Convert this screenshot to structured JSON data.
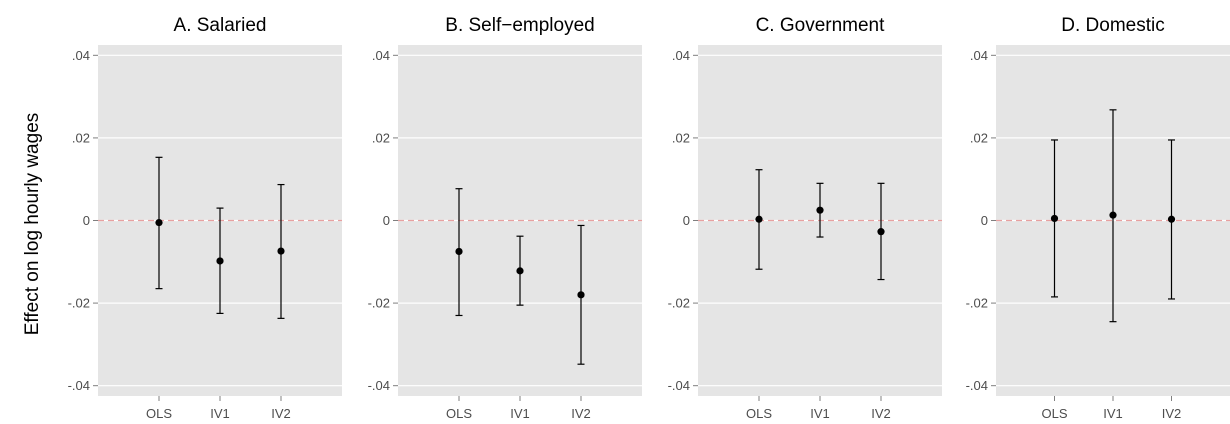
{
  "figure": {
    "ylabel": "Effect on log hourly wages"
  },
  "chart_data": [
    {
      "type": "scatter",
      "title": "A. Salaried",
      "xlabel": "",
      "ylabel": "Effect on log hourly wages",
      "categories": [
        "OLS",
        "IV1",
        "IV2"
      ],
      "estimates": [
        -0.0005,
        -0.0098,
        -0.0074
      ],
      "ci_low": [
        -0.0165,
        -0.0225,
        -0.0237
      ],
      "ci_high": [
        0.0153,
        0.003,
        0.0087
      ],
      "ylim": [
        -0.0425,
        0.0425
      ],
      "yticks": [
        0.04,
        0.02,
        0,
        -0.02,
        -0.04
      ],
      "yticklabels": [
        ".04",
        ".02",
        "0",
        "-.02",
        "-.04"
      ],
      "reference_line": 0,
      "reference_color": "#e8a0a0",
      "background": "#e5e5e5",
      "grid": true
    },
    {
      "type": "scatter",
      "title": "B. Self−employed",
      "xlabel": "",
      "ylabel": "",
      "categories": [
        "OLS",
        "IV1",
        "IV2"
      ],
      "estimates": [
        -0.0075,
        -0.0122,
        -0.018
      ],
      "ci_low": [
        -0.023,
        -0.0205,
        -0.0348
      ],
      "ci_high": [
        0.0077,
        -0.0038,
        -0.0012
      ],
      "ylim": [
        -0.0425,
        0.0425
      ],
      "yticks": [
        0.04,
        0.02,
        0,
        -0.02,
        -0.04
      ],
      "yticklabels": [
        ".04",
        ".02",
        "0",
        "-.02",
        "-.04"
      ],
      "reference_line": 0,
      "reference_color": "#e8a0a0",
      "background": "#e5e5e5",
      "grid": true
    },
    {
      "type": "scatter",
      "title": "C. Government",
      "xlabel": "",
      "ylabel": "",
      "categories": [
        "OLS",
        "IV1",
        "IV2"
      ],
      "estimates": [
        0.0003,
        0.0025,
        -0.0027
      ],
      "ci_low": [
        -0.0118,
        -0.004,
        -0.0143
      ],
      "ci_high": [
        0.0123,
        0.009,
        0.009
      ],
      "ylim": [
        -0.0425,
        0.0425
      ],
      "yticks": [
        0.04,
        0.02,
        0,
        -0.02,
        -0.04
      ],
      "yticklabels": [
        ".04",
        ".02",
        "0",
        "-.02",
        "-.04"
      ],
      "reference_line": 0,
      "reference_color": "#e8a0a0",
      "background": "#e5e5e5",
      "grid": true
    },
    {
      "type": "scatter",
      "title": "D. Domestic",
      "xlabel": "",
      "ylabel": "",
      "categories": [
        "OLS",
        "IV1",
        "IV2"
      ],
      "estimates": [
        0.0005,
        0.0013,
        0.0003
      ],
      "ci_low": [
        -0.0185,
        -0.0245,
        -0.019
      ],
      "ci_high": [
        0.0195,
        0.0268,
        0.0195
      ],
      "ylim": [
        -0.0425,
        0.0425
      ],
      "yticks": [
        0.04,
        0.02,
        0,
        -0.02,
        -0.04
      ],
      "yticklabels": [
        ".04",
        ".02",
        "0",
        "-.02",
        "-.04"
      ],
      "reference_line": 0,
      "reference_color": "#e8a0a0",
      "background": "#e5e5e5",
      "grid": true
    }
  ]
}
